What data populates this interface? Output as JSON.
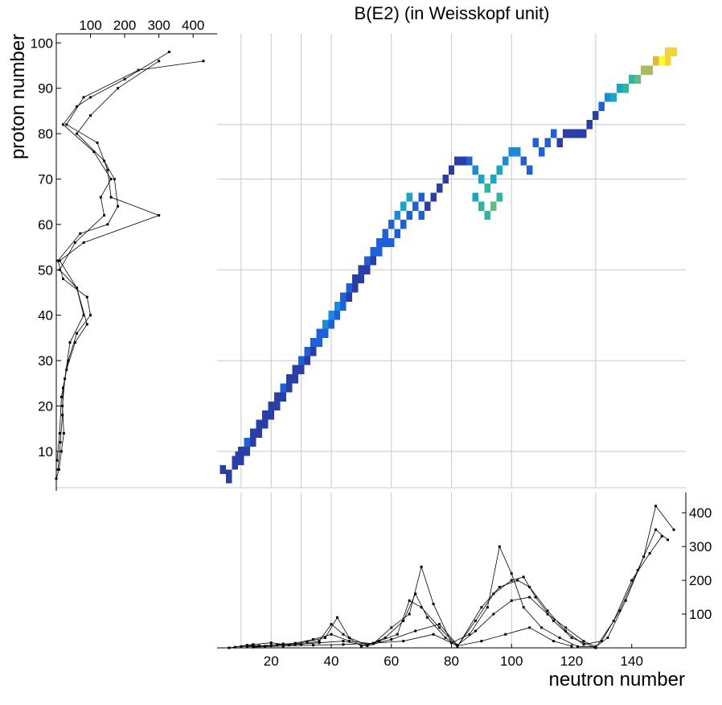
{
  "chart_data": {
    "type": "heatmap",
    "title": "B(E2) (in Weisskopf unit)",
    "main": {
      "xlabel": "neutron number",
      "ylabel": "proton number",
      "xlim": [
        2,
        158
      ],
      "ylim": [
        2,
        102
      ],
      "x_gridlines": [
        10,
        20,
        30,
        40,
        60,
        80,
        100,
        128
      ],
      "y_gridlines": [
        10,
        30,
        50,
        70,
        82
      ],
      "y_ticks": [
        10,
        20,
        30,
        40,
        50,
        60,
        70,
        80,
        90,
        100
      ],
      "colorscale": [
        "#2a3ea8",
        "#1c60dc",
        "#1a8ae0",
        "#12a8c8",
        "#2ab8a0",
        "#62bc84",
        "#a8bc5a",
        "#e0b840",
        "#f5d43a",
        "#ffff20"
      ],
      "cells": [
        [
          4,
          6,
          0.02
        ],
        [
          6,
          5,
          0.02
        ],
        [
          6,
          4,
          0.02
        ],
        [
          8,
          7,
          0.02
        ],
        [
          8,
          8,
          0.05
        ],
        [
          9,
          9,
          0.02
        ],
        [
          10,
          10,
          0.05
        ],
        [
          10,
          8,
          0.03
        ],
        [
          12,
          12,
          0.06
        ],
        [
          12,
          10,
          0.03
        ],
        [
          14,
          12,
          0.02
        ],
        [
          14,
          14,
          0.05
        ],
        [
          16,
          14,
          0.02
        ],
        [
          16,
          16,
          0.04
        ],
        [
          18,
          16,
          0.03
        ],
        [
          18,
          18,
          0.05
        ],
        [
          20,
          18,
          0.02
        ],
        [
          20,
          20,
          0.04
        ],
        [
          22,
          20,
          0.02
        ],
        [
          22,
          22,
          0.05
        ],
        [
          24,
          22,
          0.03
        ],
        [
          24,
          24,
          0.06
        ],
        [
          26,
          24,
          0.02
        ],
        [
          26,
          26,
          0.04
        ],
        [
          28,
          26,
          0.02
        ],
        [
          28,
          28,
          0.05
        ],
        [
          30,
          28,
          0.02
        ],
        [
          30,
          30,
          0.06
        ],
        [
          32,
          30,
          0.04
        ],
        [
          32,
          32,
          0.1
        ],
        [
          34,
          32,
          0.05
        ],
        [
          34,
          34,
          0.12
        ],
        [
          36,
          34,
          0.06
        ],
        [
          36,
          36,
          0.12
        ],
        [
          38,
          36,
          0.08
        ],
        [
          38,
          38,
          0.18
        ],
        [
          40,
          38,
          0.1
        ],
        [
          40,
          40,
          0.2
        ],
        [
          42,
          40,
          0.12
        ],
        [
          42,
          42,
          0.18
        ],
        [
          44,
          42,
          0.1
        ],
        [
          44,
          44,
          0.12
        ],
        [
          46,
          44,
          0.05
        ],
        [
          46,
          46,
          0.06
        ],
        [
          48,
          46,
          0.03
        ],
        [
          48,
          48,
          0.04
        ],
        [
          50,
          48,
          0.02
        ],
        [
          50,
          50,
          0.03
        ],
        [
          52,
          50,
          0.04
        ],
        [
          52,
          52,
          0.06
        ],
        [
          54,
          52,
          0.05
        ],
        [
          54,
          54,
          0.08
        ],
        [
          56,
          54,
          0.06
        ],
        [
          56,
          56,
          0.1
        ],
        [
          58,
          56,
          0.06
        ],
        [
          58,
          58,
          0.1
        ],
        [
          60,
          56,
          0.08
        ],
        [
          60,
          60,
          0.15
        ],
        [
          62,
          58,
          0.08
        ],
        [
          62,
          62,
          0.22
        ],
        [
          64,
          60,
          0.12
        ],
        [
          64,
          64,
          0.3
        ],
        [
          66,
          62,
          0.14
        ],
        [
          66,
          66,
          0.3
        ],
        [
          68,
          64,
          0.1
        ],
        [
          70,
          62,
          0.12
        ],
        [
          70,
          66,
          0.08
        ],
        [
          72,
          64,
          0.05
        ],
        [
          74,
          66,
          0.03
        ],
        [
          76,
          68,
          0.03
        ],
        [
          78,
          70,
          0.02
        ],
        [
          80,
          72,
          0.02
        ],
        [
          82,
          74,
          0.02
        ],
        [
          84,
          74,
          0.05
        ],
        [
          86,
          74,
          0.12
        ],
        [
          88,
          72,
          0.2
        ],
        [
          88,
          66,
          0.35
        ],
        [
          90,
          70,
          0.3
        ],
        [
          90,
          64,
          0.42
        ],
        [
          92,
          68,
          0.4
        ],
        [
          92,
          62,
          0.48
        ],
        [
          94,
          70,
          0.38
        ],
        [
          94,
          64,
          0.5
        ],
        [
          96,
          72,
          0.3
        ],
        [
          96,
          66,
          0.45
        ],
        [
          98,
          74,
          0.25
        ],
        [
          100,
          76,
          0.22
        ],
        [
          102,
          76,
          0.18
        ],
        [
          104,
          74,
          0.12
        ],
        [
          106,
          72,
          0.1
        ],
        [
          108,
          78,
          0.1
        ],
        [
          110,
          76,
          0.12
        ],
        [
          112,
          78,
          0.1
        ],
        [
          114,
          80,
          0.08
        ],
        [
          116,
          78,
          0.05
        ],
        [
          118,
          80,
          0.04
        ],
        [
          120,
          80,
          0.04
        ],
        [
          122,
          80,
          0.04
        ],
        [
          124,
          80,
          0.03
        ],
        [
          126,
          82,
          0.02
        ],
        [
          128,
          84,
          0.03
        ],
        [
          130,
          86,
          0.08
        ],
        [
          132,
          88,
          0.2
        ],
        [
          134,
          88,
          0.28
        ],
        [
          136,
          90,
          0.35
        ],
        [
          138,
          90,
          0.4
        ],
        [
          140,
          92,
          0.48
        ],
        [
          142,
          92,
          0.55
        ],
        [
          144,
          94,
          0.65
        ],
        [
          146,
          94,
          0.7
        ],
        [
          148,
          96,
          0.82
        ],
        [
          150,
          96,
          0.95
        ],
        [
          152,
          96,
          0.9
        ],
        [
          152,
          98,
          0.85
        ],
        [
          154,
          98,
          0.9
        ]
      ]
    },
    "proton_projection": {
      "xlim": [
        0,
        470
      ],
      "x_ticks": [
        100,
        200,
        300,
        400
      ],
      "series": [
        {
          "points": [
            [
              0,
              4
            ],
            [
              8,
              6
            ],
            [
              15,
              10
            ],
            [
              22,
              14
            ],
            [
              18,
              20
            ],
            [
              25,
              26
            ],
            [
              40,
              34
            ],
            [
              80,
              40
            ],
            [
              60,
              46
            ],
            [
              10,
              50
            ],
            [
              55,
              56
            ],
            [
              140,
              62
            ],
            [
              130,
              66
            ],
            [
              160,
              70
            ],
            [
              110,
              76
            ],
            [
              20,
              82
            ],
            [
              60,
              86
            ],
            [
              100,
              88
            ],
            [
              200,
              92
            ],
            [
              330,
              98
            ]
          ]
        },
        {
          "points": [
            [
              5,
              6
            ],
            [
              12,
              12
            ],
            [
              18,
              18
            ],
            [
              20,
              24
            ],
            [
              35,
              30
            ],
            [
              60,
              36
            ],
            [
              100,
              40
            ],
            [
              90,
              44
            ],
            [
              20,
              48
            ],
            [
              5,
              52
            ],
            [
              70,
              58
            ],
            [
              150,
              60
            ],
            [
              180,
              64
            ],
            [
              170,
              70
            ],
            [
              140,
              74
            ],
            [
              60,
              80
            ],
            [
              100,
              84
            ],
            [
              180,
              90
            ],
            [
              300,
              96
            ]
          ]
        },
        {
          "points": [
            [
              2,
              8
            ],
            [
              10,
              14
            ],
            [
              15,
              22
            ],
            [
              30,
              28
            ],
            [
              55,
              34
            ],
            [
              90,
              38
            ],
            [
              60,
              46
            ],
            [
              10,
              52
            ],
            [
              80,
              56
            ],
            [
              300,
              62
            ],
            [
              160,
              66
            ],
            [
              150,
              72
            ],
            [
              120,
              78
            ],
            [
              30,
              82
            ],
            [
              80,
              88
            ],
            [
              240,
              94
            ],
            [
              430,
              96
            ]
          ]
        }
      ]
    },
    "neutron_projection": {
      "ylim": [
        0,
        460
      ],
      "y_ticks": [
        100,
        200,
        300,
        400
      ],
      "series": [
        {
          "points": [
            [
              6,
              0
            ],
            [
              12,
              8
            ],
            [
              18,
              5
            ],
            [
              24,
              12
            ],
            [
              30,
              10
            ],
            [
              36,
              20
            ],
            [
              40,
              70
            ],
            [
              44,
              40
            ],
            [
              50,
              5
            ],
            [
              56,
              20
            ],
            [
              62,
              40
            ],
            [
              66,
              140
            ],
            [
              70,
              120
            ],
            [
              76,
              60
            ],
            [
              82,
              5
            ],
            [
              88,
              80
            ],
            [
              94,
              160
            ],
            [
              100,
              200
            ],
            [
              104,
              210
            ],
            [
              108,
              150
            ],
            [
              114,
              80
            ],
            [
              120,
              30
            ],
            [
              128,
              0
            ],
            [
              134,
              80
            ],
            [
              140,
              200
            ],
            [
              146,
              280
            ],
            [
              150,
              330
            ]
          ]
        },
        {
          "points": [
            [
              8,
              2
            ],
            [
              14,
              10
            ],
            [
              20,
              15
            ],
            [
              26,
              8
            ],
            [
              32,
              18
            ],
            [
              38,
              30
            ],
            [
              42,
              90
            ],
            [
              46,
              30
            ],
            [
              52,
              8
            ],
            [
              58,
              30
            ],
            [
              64,
              80
            ],
            [
              68,
              160
            ],
            [
              72,
              90
            ],
            [
              78,
              30
            ],
            [
              82,
              4
            ],
            [
              90,
              120
            ],
            [
              96,
              180
            ],
            [
              102,
              200
            ],
            [
              106,
              180
            ],
            [
              112,
              110
            ],
            [
              118,
              50
            ],
            [
              124,
              10
            ],
            [
              130,
              20
            ],
            [
              136,
              110
            ],
            [
              142,
              230
            ],
            [
              148,
              350
            ],
            [
              152,
              320
            ]
          ]
        },
        {
          "points": [
            [
              10,
              4
            ],
            [
              16,
              6
            ],
            [
              22,
              9
            ],
            [
              28,
              14
            ],
            [
              34,
              25
            ],
            [
              40,
              40
            ],
            [
              46,
              20
            ],
            [
              54,
              12
            ],
            [
              60,
              60
            ],
            [
              66,
              100
            ],
            [
              70,
              240
            ],
            [
              74,
              130
            ],
            [
              80,
              15
            ],
            [
              86,
              40
            ],
            [
              92,
              120
            ],
            [
              96,
              300
            ],
            [
              100,
              220
            ],
            [
              104,
              120
            ],
            [
              110,
              60
            ],
            [
              116,
              30
            ],
            [
              122,
              4
            ],
            [
              128,
              3
            ],
            [
              132,
              30
            ],
            [
              138,
              140
            ],
            [
              144,
              270
            ],
            [
              148,
              420
            ],
            [
              154,
              350
            ]
          ]
        },
        {
          "points": [
            [
              12,
              3
            ],
            [
              20,
              7
            ],
            [
              28,
              10
            ],
            [
              36,
              15
            ],
            [
              44,
              20
            ],
            [
              52,
              6
            ],
            [
              60,
              25
            ],
            [
              68,
              50
            ],
            [
              76,
              70
            ],
            [
              82,
              8
            ],
            [
              88,
              50
            ],
            [
              94,
              100
            ],
            [
              100,
              140
            ],
            [
              106,
              150
            ],
            [
              112,
              100
            ],
            [
              118,
              60
            ],
            [
              124,
              20
            ],
            [
              128,
              4
            ]
          ]
        },
        {
          "points": [
            [
              14,
              2
            ],
            [
              24,
              5
            ],
            [
              34,
              8
            ],
            [
              44,
              10
            ],
            [
              54,
              14
            ],
            [
              64,
              20
            ],
            [
              74,
              40
            ],
            [
              82,
              6
            ],
            [
              90,
              20
            ],
            [
              98,
              40
            ],
            [
              106,
              60
            ],
            [
              114,
              20
            ],
            [
              120,
              5
            ]
          ]
        }
      ]
    }
  }
}
